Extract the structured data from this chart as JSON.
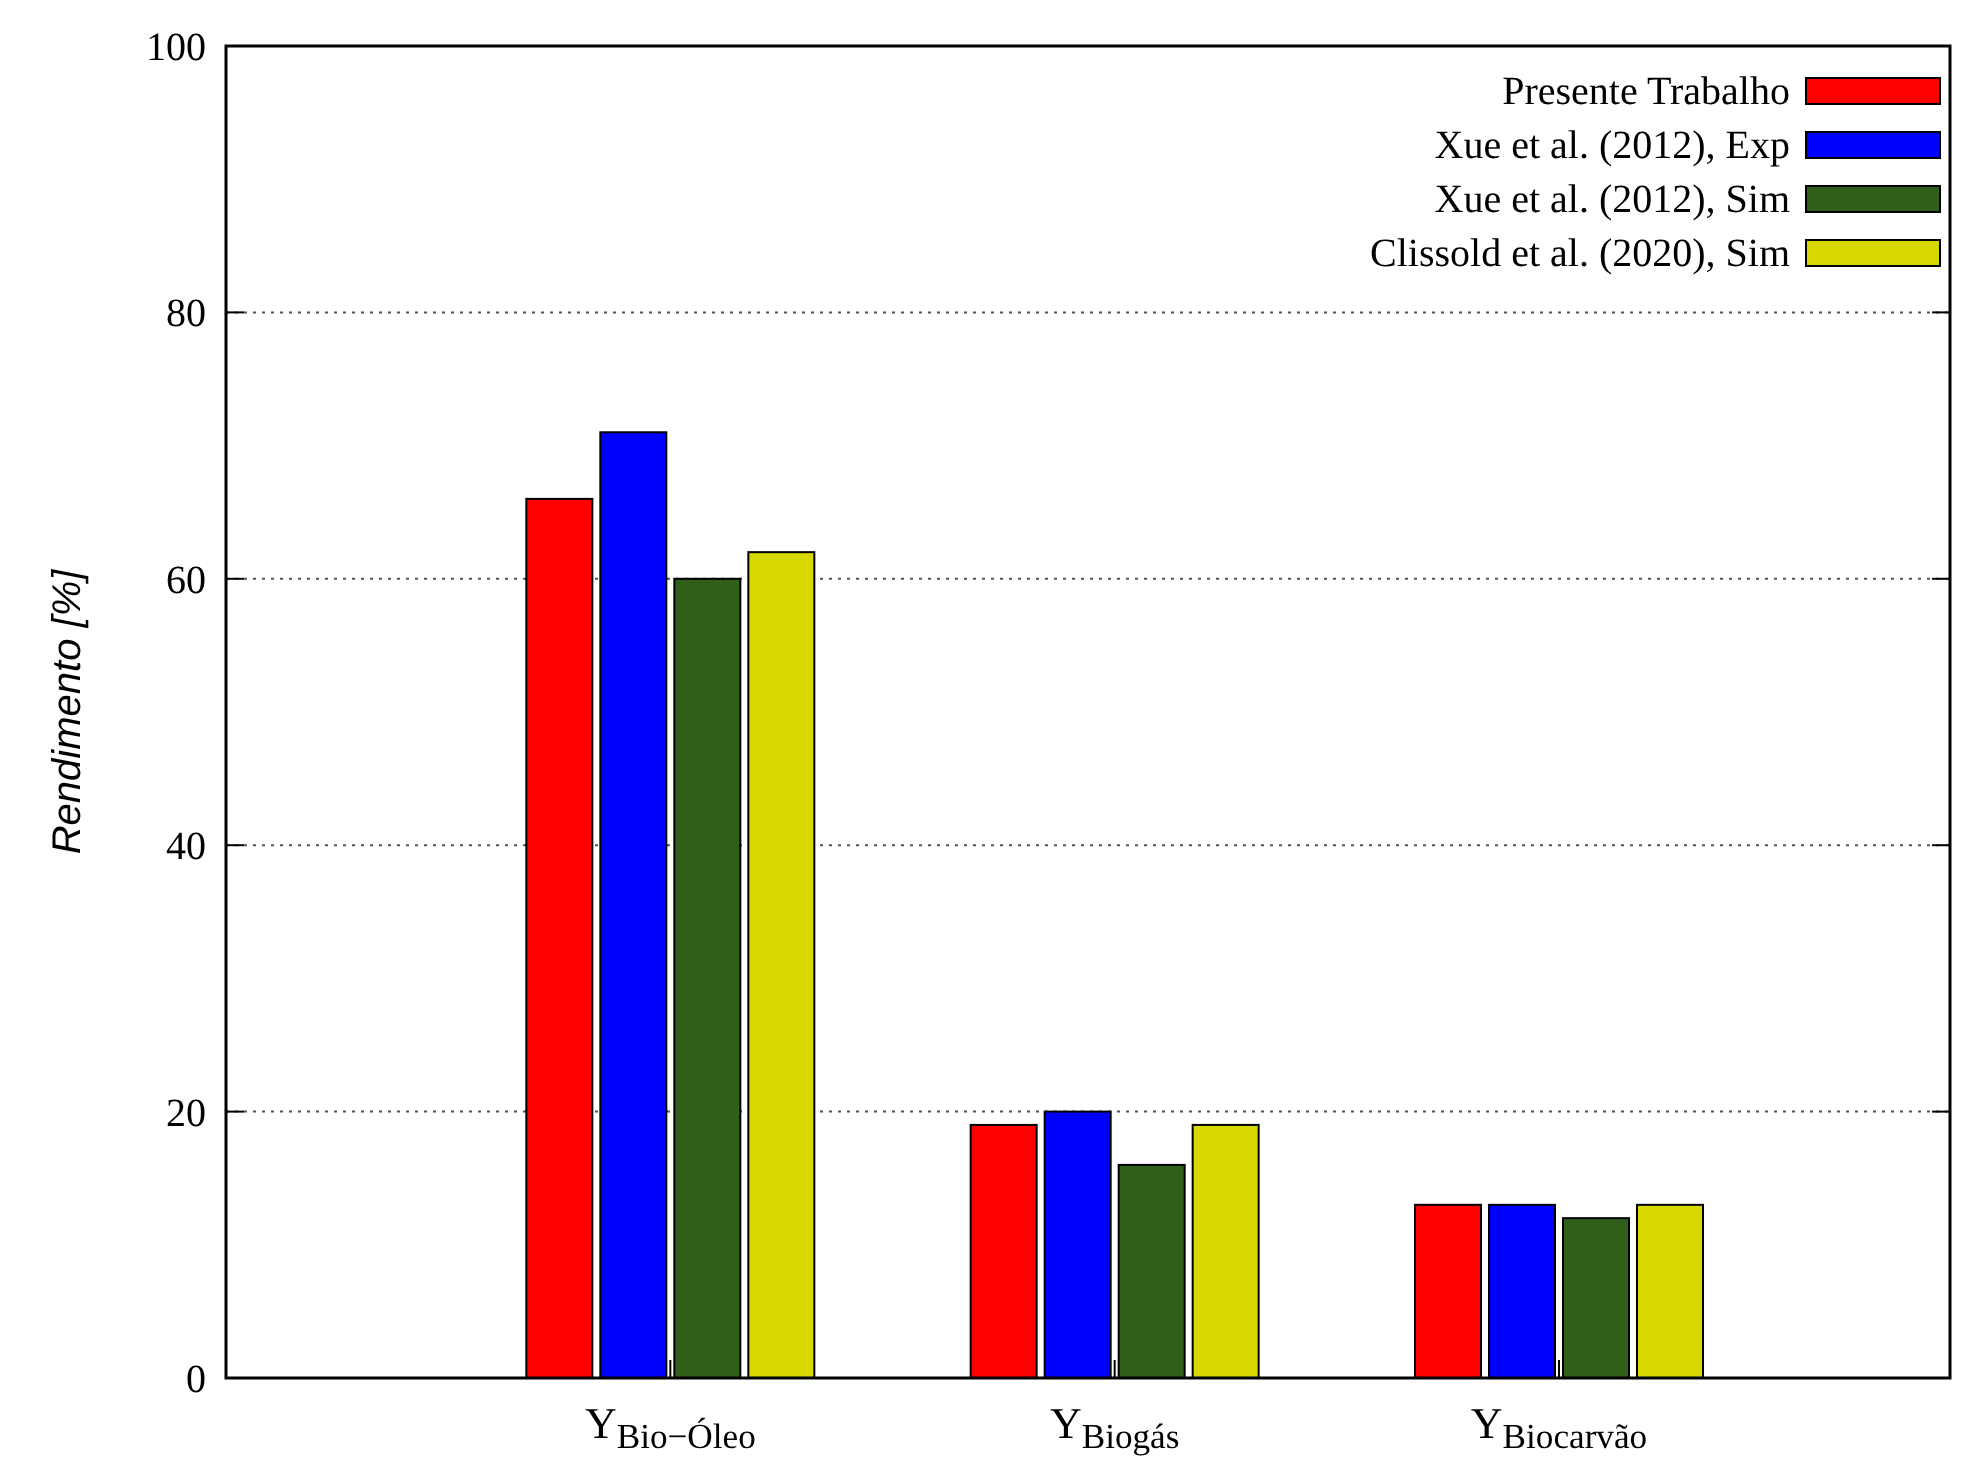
{
  "chart_data": {
    "type": "bar",
    "ylabel": "Rendimento [%]",
    "categories": [
      "Y$_{Bio−Óleo}$",
      "Y$_{Biogás}$",
      "Y$_{Biocarvão}$"
    ],
    "series": [
      {
        "name": "Presente Trabalho",
        "color": "#ff0000",
        "values": [
          66,
          19,
          13
        ]
      },
      {
        "name": "Xue et al. (2012), Exp",
        "color": "#0000ff",
        "values": [
          71,
          20,
          13
        ]
      },
      {
        "name": "Xue et al. (2012), Sim",
        "color": "#2f5f1a",
        "values": [
          60,
          16,
          12
        ]
      },
      {
        "name": "Clissold et al. (2020), Sim",
        "color": "#d6d800",
        "values": [
          62,
          19,
          13
        ]
      }
    ],
    "ylim": [
      0,
      100
    ],
    "yticks": [
      0,
      20,
      40,
      60,
      80,
      100
    ],
    "grid": "y",
    "legend": "top right"
  }
}
